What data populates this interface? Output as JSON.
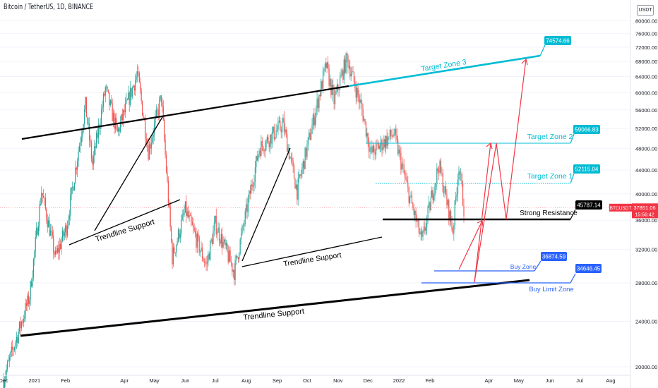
{
  "header": {
    "title": "Bitcoin / TetherUS, 1D, BINANCE",
    "currency_button": "USDT"
  },
  "chart_data": {
    "type": "candlestick",
    "symbol": "BTCUSDT",
    "interval": "1D",
    "exchange": "BINANCE",
    "x_ticks": [
      "Dec",
      "2021",
      "Feb",
      "Apr",
      "May",
      "Jun",
      "Jul",
      "Aug",
      "Sep",
      "Oct",
      "Nov",
      "Dec",
      "2022",
      "Feb",
      "Apr",
      "May",
      "Jun",
      "Jul",
      "Aug"
    ],
    "y_ticks": [
      20000,
      24000,
      28000,
      32000,
      36000,
      40000,
      44000,
      48000,
      52000,
      56000,
      60000,
      64000,
      68000,
      72000,
      76000,
      80000
    ],
    "y_tick_labels": [
      "20000.00",
      "24000.00",
      "28000.00",
      "32000.00",
      "36000.00",
      "40000.00",
      "44000.00",
      "48000.00",
      "52000.00",
      "56000.00",
      "60000.00",
      "64000.00",
      "68000.00",
      "72000.00",
      "76000.00",
      "80000.00"
    ],
    "ylim": [
      18900,
      82200
    ],
    "log_scale": true,
    "price_path": [
      {
        "date": "2020-12-01",
        "price": 19000
      },
      {
        "date": "2020-12-27",
        "price": 26500
      },
      {
        "date": "2021-01-08",
        "price": 40500
      },
      {
        "date": "2021-01-22",
        "price": 31000
      },
      {
        "date": "2021-02-02",
        "price": 35000
      },
      {
        "date": "2021-02-21",
        "price": 57000
      },
      {
        "date": "2021-02-28",
        "price": 45000
      },
      {
        "date": "2021-03-13",
        "price": 61000
      },
      {
        "date": "2021-03-25",
        "price": 51000
      },
      {
        "date": "2021-04-14",
        "price": 64800
      },
      {
        "date": "2021-04-25",
        "price": 47500
      },
      {
        "date": "2021-05-08",
        "price": 59000
      },
      {
        "date": "2021-05-19",
        "price": 31000
      },
      {
        "date": "2021-06-01",
        "price": 37500
      },
      {
        "date": "2021-06-22",
        "price": 30000
      },
      {
        "date": "2021-07-01",
        "price": 35500
      },
      {
        "date": "2021-07-20",
        "price": 29300
      },
      {
        "date": "2021-08-14",
        "price": 48000
      },
      {
        "date": "2021-09-07",
        "price": 52900
      },
      {
        "date": "2021-09-21",
        "price": 40500
      },
      {
        "date": "2021-10-20",
        "price": 66900
      },
      {
        "date": "2021-10-28",
        "price": 58000
      },
      {
        "date": "2021-11-10",
        "price": 69000
      },
      {
        "date": "2021-11-25",
        "price": 56000
      },
      {
        "date": "2021-12-04",
        "price": 47000
      },
      {
        "date": "2021-12-27",
        "price": 51000
      },
      {
        "date": "2022-01-10",
        "price": 40500
      },
      {
        "date": "2022-01-24",
        "price": 33000
      },
      {
        "date": "2022-02-10",
        "price": 45000
      },
      {
        "date": "2022-02-24",
        "price": 34500
      },
      {
        "date": "2022-03-02",
        "price": 45000
      },
      {
        "date": "2022-03-07",
        "price": 37851
      }
    ],
    "current_price": {
      "label": "BTCUSDT",
      "value": "37851.06",
      "countdown": "15:56:42"
    },
    "levels": [
      {
        "name": "Target Zone 3",
        "value": "74574.66",
        "price": 74574.66,
        "color": "#00bcd4"
      },
      {
        "name": "Target Zone 2",
        "value": "59066.83",
        "price": 59066.83,
        "color": "#00bcd4"
      },
      {
        "name": "Target Zone 1",
        "value": "52115.04",
        "price": 52115.04,
        "color": "#00bcd4"
      },
      {
        "name": "Strong Resistance",
        "value": "45787.14",
        "price": 45787.14,
        "color": "#000000"
      },
      {
        "name": "Buy Zone",
        "value": "36874.59",
        "price": 36874.59,
        "color": "#2962ff"
      },
      {
        "name": "Buy Limit Zone",
        "value": "34646.45",
        "price": 34646.45,
        "color": "#2962ff"
      }
    ],
    "annotations": [
      "Trendline Support",
      "Trendline Support",
      "Trendline Support",
      "Target Zone 3",
      "Target Zone 2",
      "Target Zone 1",
      "Strong Resistance",
      "Buy Zone",
      "Buy Limit Zone"
    ],
    "colors": {
      "up": "#26a69a",
      "down": "#ef5350",
      "target": "#00bcd4",
      "buy": "#2962ff",
      "projection": "#f23645",
      "grid": "#f0f3fa"
    }
  }
}
